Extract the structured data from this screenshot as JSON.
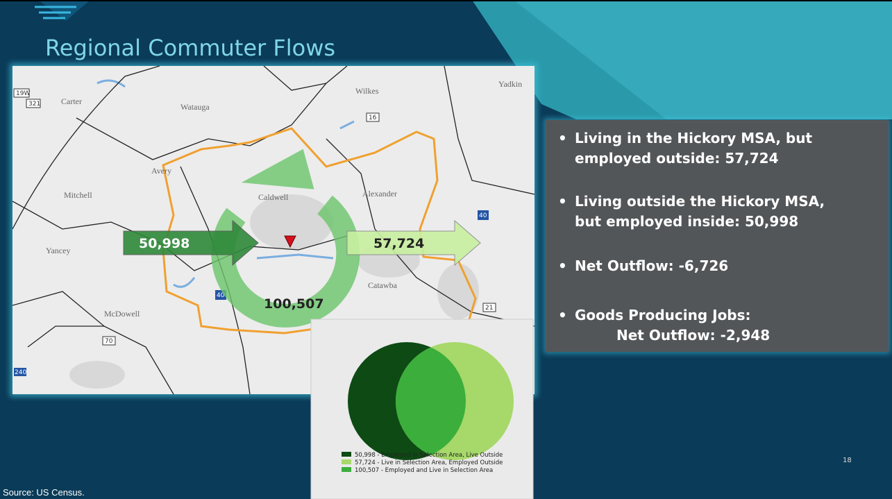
{
  "title": "Regional Commuter Flows",
  "map": {
    "counties": [
      "Carter",
      "Watauga",
      "Wilkes",
      "Yadkin",
      "Avery",
      "Caldwell",
      "Alexander",
      "Mitchell",
      "Yancey",
      "Catawba",
      "McDowell"
    ],
    "shields": [
      "19W",
      "321",
      "16",
      "40",
      "70",
      "21",
      "240"
    ],
    "flows": {
      "inflow": "50,998",
      "outflow": "57,724",
      "internal": "100,507"
    }
  },
  "bullets": [
    [
      "Living in the Hickory MSA, but",
      "employed outside: 57,724"
    ],
    [
      "Living outside the Hickory MSA,",
      "but employed inside: 50,998"
    ],
    [
      "Net Outflow: -6,726"
    ],
    [
      "Goods Producing Jobs:",
      "Net Outflow: -2,948"
    ]
  ],
  "venn": {
    "legend": [
      "50,998 - Employed in Selection Area, Live Outside",
      "57,724 - Live in Selection Area, Employed Outside",
      "100,507 - Employed and Live in Selection Area"
    ]
  },
  "page_number": "18",
  "source": "Source: US Census."
}
